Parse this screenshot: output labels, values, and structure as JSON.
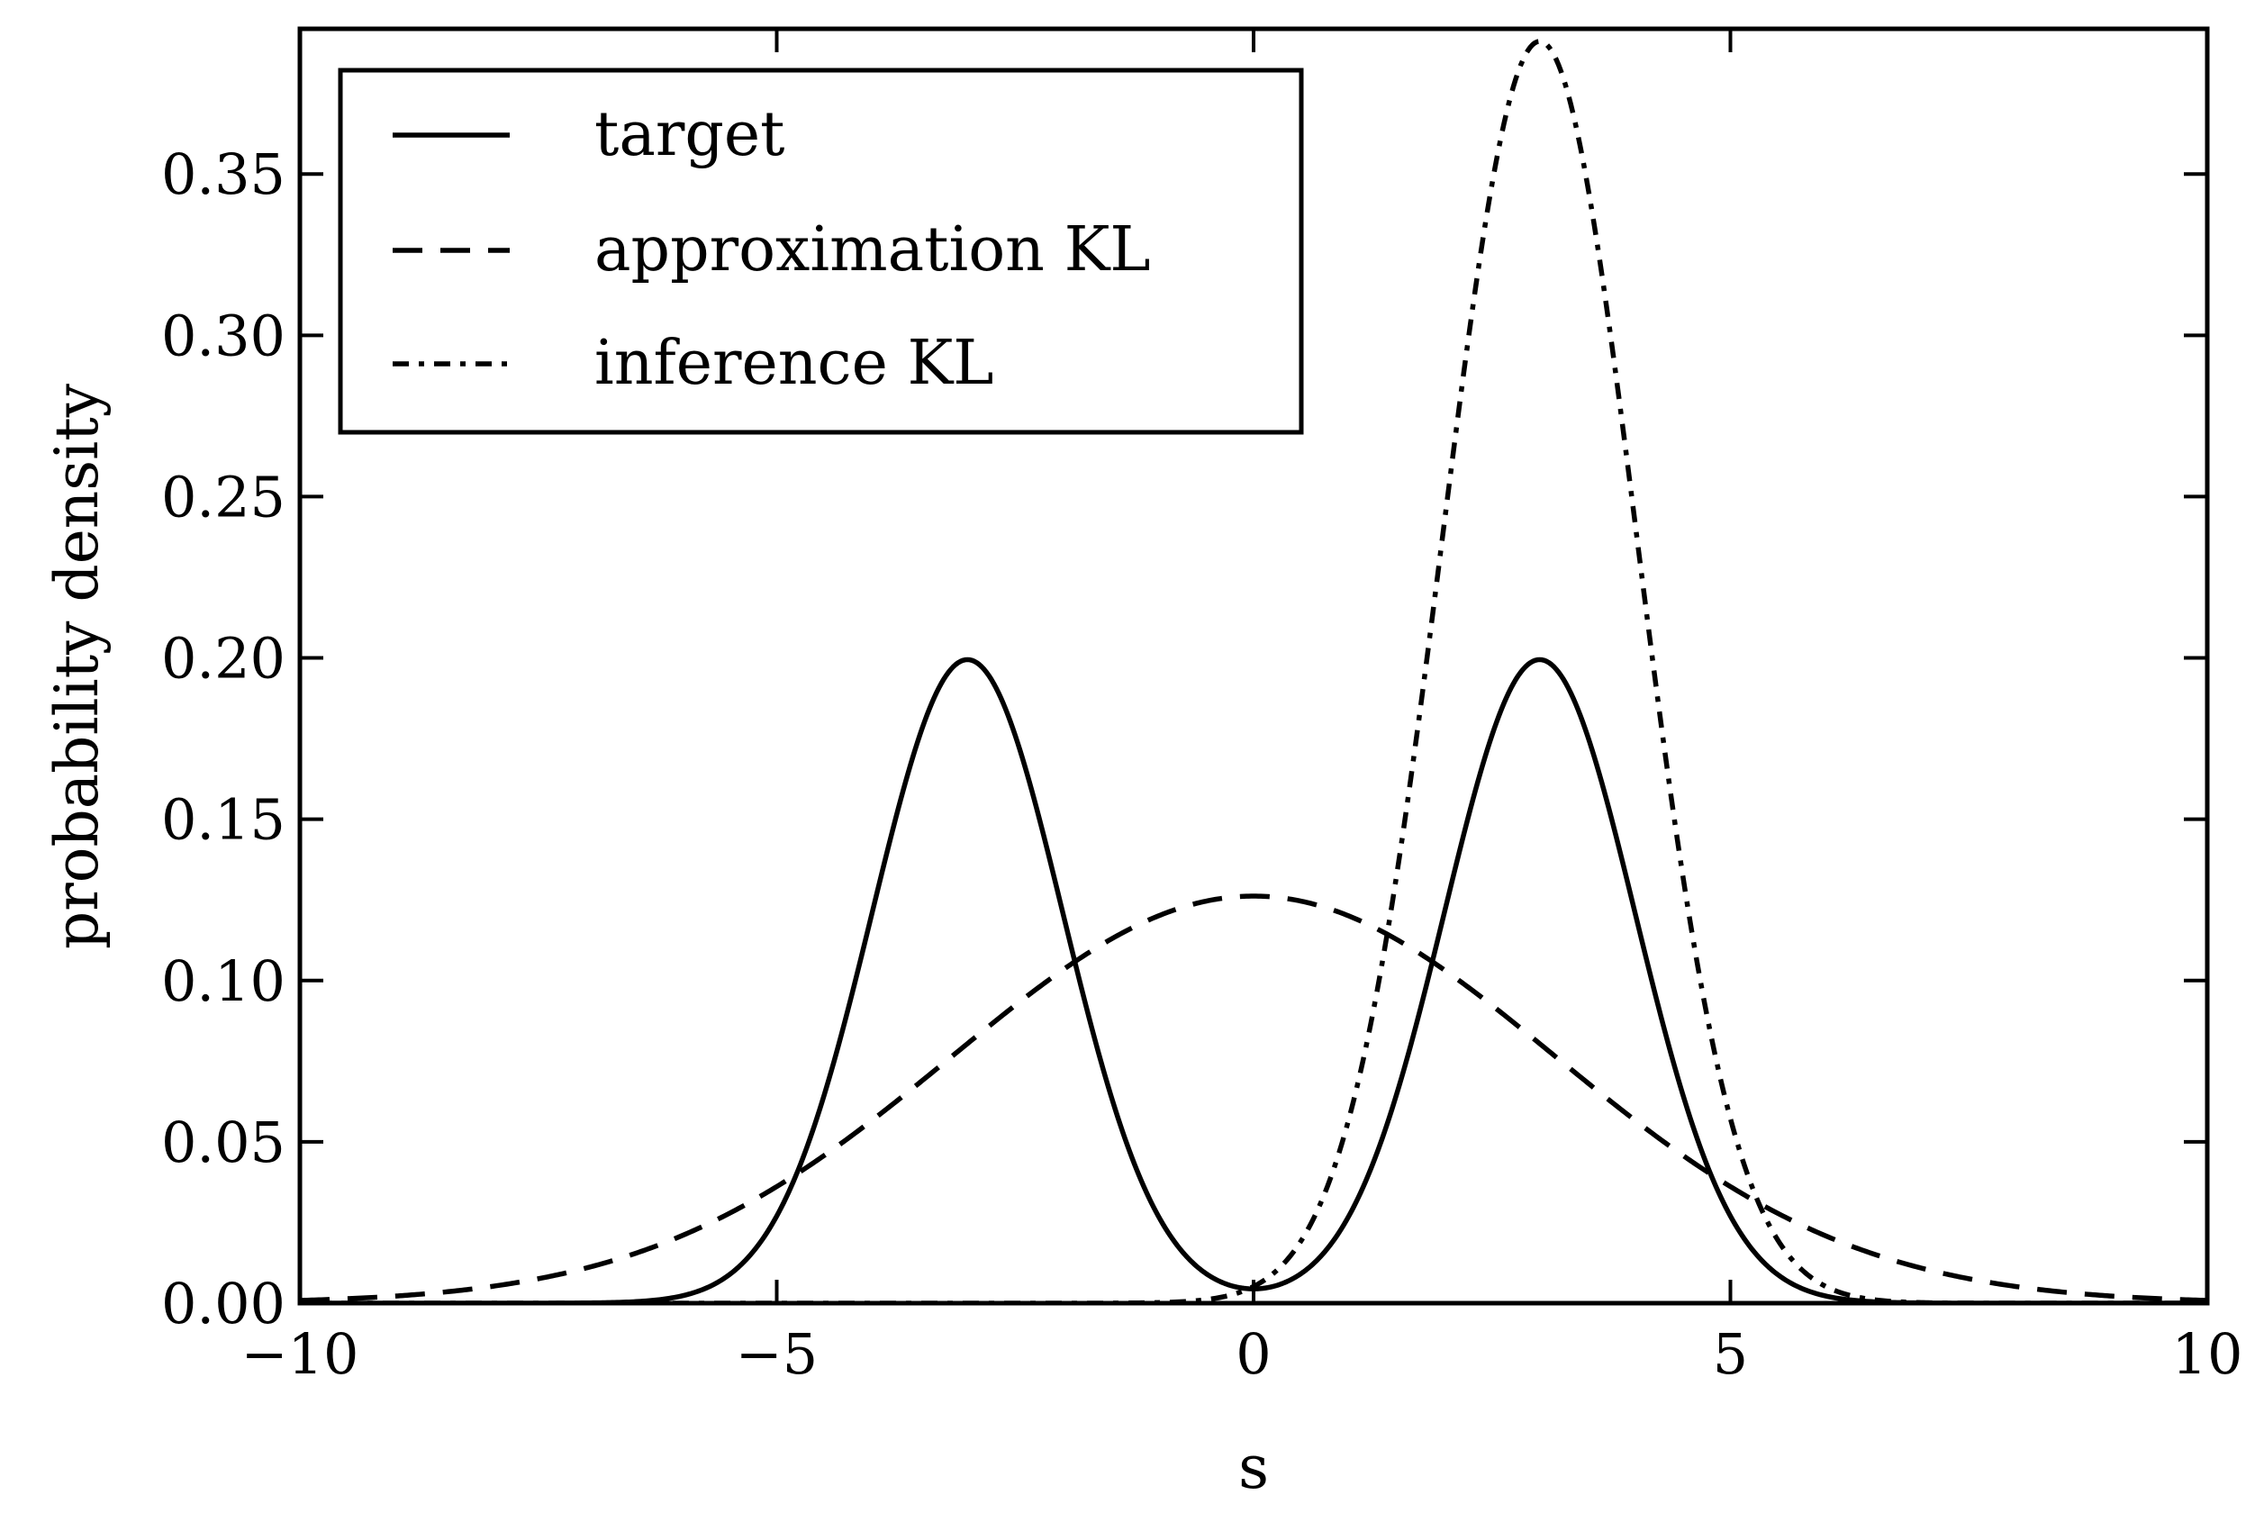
{
  "chart_data": {
    "type": "line",
    "title": "",
    "xlabel": "s",
    "ylabel": "probability density",
    "xlim": [
      -10,
      10
    ],
    "ylim": [
      0,
      0.395
    ],
    "xticks": [
      -10,
      -5,
      0,
      5,
      10
    ],
    "xtick_labels": [
      "−10",
      "−5",
      "0",
      "5",
      "10"
    ],
    "yticks": [
      0.0,
      0.05,
      0.1,
      0.15,
      0.2,
      0.25,
      0.3,
      0.35
    ],
    "ytick_labels": [
      "0.00",
      "0.05",
      "0.10",
      "0.15",
      "0.20",
      "0.25",
      "0.30",
      "0.35"
    ],
    "grid": false,
    "legend_position": "top-left",
    "series": [
      {
        "name": "target",
        "style": "solid",
        "description": "equal mixture of two Gaussians",
        "components": [
          {
            "weight": 0.5,
            "mean": -3.0,
            "std": 1.0
          },
          {
            "weight": 0.5,
            "mean": 3.0,
            "std": 1.0
          }
        ]
      },
      {
        "name": "approximation KL",
        "style": "dashed",
        "description": "single broad Gaussian",
        "components": [
          {
            "weight": 1.0,
            "mean": 0.0,
            "std": 3.162
          }
        ]
      },
      {
        "name": "inference KL",
        "style": "dashdot",
        "description": "narrow Gaussian on one mode",
        "components": [
          {
            "weight": 1.0,
            "mean": 3.0,
            "std": 1.02
          }
        ]
      }
    ],
    "colors": {
      "line": "#000000",
      "background": "#ffffff"
    }
  }
}
